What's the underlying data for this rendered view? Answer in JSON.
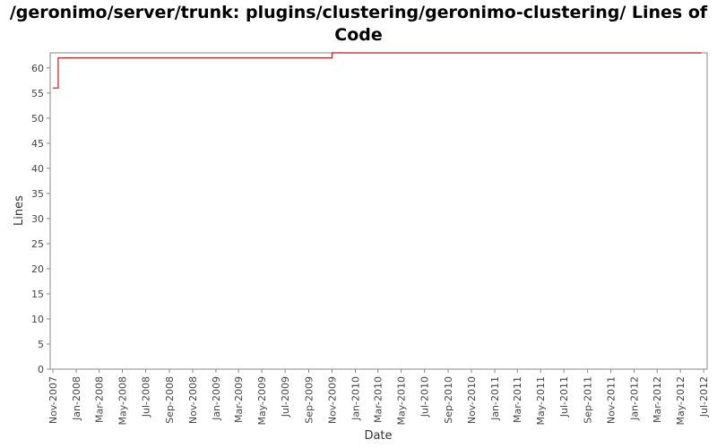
{
  "chart_data": {
    "type": "line",
    "step": true,
    "title_line1": "/geronimo/server/trunk: plugins/clustering/geronimo-clustering/ Lines of",
    "title_line2": "Code",
    "xlabel": "Date",
    "ylabel": "Lines",
    "ylim": [
      0,
      63
    ],
    "xlim": [
      "2007-10-25",
      "2012-07-10"
    ],
    "yticks": [
      0,
      5,
      10,
      15,
      20,
      25,
      30,
      35,
      40,
      45,
      50,
      55,
      60
    ],
    "xticks": [
      "Nov-2007",
      "Jan-2008",
      "Mar-2008",
      "May-2008",
      "Jul-2008",
      "Sep-2008",
      "Nov-2008",
      "Jan-2009",
      "Mar-2009",
      "May-2009",
      "Jul-2009",
      "Sep-2009",
      "Nov-2009",
      "Jan-2010",
      "Mar-2010",
      "May-2010",
      "Jul-2010",
      "Sep-2010",
      "Nov-2010",
      "Jan-2011",
      "Mar-2011",
      "May-2011",
      "Jul-2011",
      "Sep-2011",
      "Nov-2011",
      "Jan-2012",
      "Mar-2012",
      "May-2012",
      "Jul-2012"
    ],
    "grid": false,
    "legend": "none",
    "line_color": "#b22222",
    "series": [
      {
        "x": [
          "2007-11-01",
          "2007-11-15",
          "2007-11-15",
          "2009-11-01",
          "2009-11-01",
          "2012-06-25"
        ],
        "y": [
          56,
          56,
          62,
          62,
          63,
          63
        ]
      }
    ]
  }
}
